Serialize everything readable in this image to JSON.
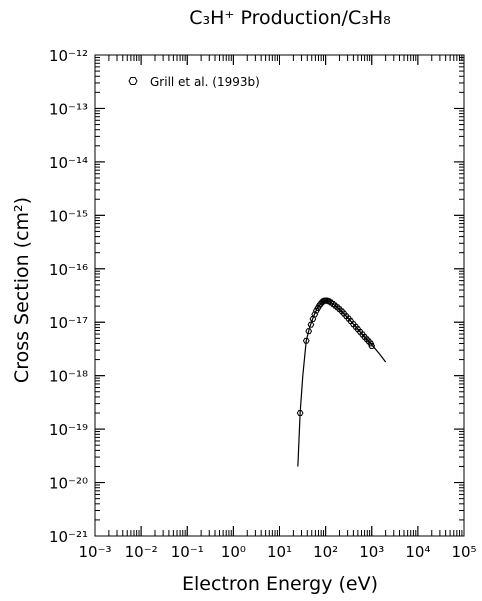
{
  "chart_data": {
    "type": "scatter",
    "title": "C₃H⁺ Production/C₃H₈",
    "xlabel": "Electron Energy (eV)",
    "ylabel": "Cross Section (cm²)",
    "x_scale": "log",
    "y_scale": "log",
    "xlim": [
      0.001,
      100000
    ],
    "ylim": [
      1e-21,
      1e-12
    ],
    "x_tick_labels": [
      "10⁻³",
      "10⁻²",
      "10⁻¹",
      "10⁰",
      "10¹",
      "10²",
      "10³",
      "10⁴",
      "10⁵"
    ],
    "y_tick_labels": [
      "10⁻²¹",
      "10⁻²⁰",
      "10⁻¹⁹",
      "10⁻¹⁸",
      "10⁻¹⁷",
      "10⁻¹⁶",
      "10⁻¹⁵",
      "10⁻¹⁴",
      "10⁻¹³",
      "10⁻¹²"
    ],
    "legend_position": "top-left",
    "grid": false,
    "series": [
      {
        "name": "Grill et al. (1993b)",
        "marker": "open-hexagon",
        "points": [
          [
            28,
            2e-19
          ],
          [
            38,
            4.5e-18
          ],
          [
            43,
            6.8e-18
          ],
          [
            48,
            9e-18
          ],
          [
            53,
            1.15e-17
          ],
          [
            58,
            1.4e-17
          ],
          [
            63,
            1.65e-17
          ],
          [
            68,
            1.85e-17
          ],
          [
            73,
            2.05e-17
          ],
          [
            78,
            2.2e-17
          ],
          [
            83,
            2.35e-17
          ],
          [
            88,
            2.45e-17
          ],
          [
            93,
            2.52e-17
          ],
          [
            98,
            2.55e-17
          ],
          [
            105,
            2.55e-17
          ],
          [
            112,
            2.5e-17
          ],
          [
            120,
            2.45e-17
          ],
          [
            130,
            2.35e-17
          ],
          [
            145,
            2.2e-17
          ],
          [
            160,
            2.05e-17
          ],
          [
            180,
            1.9e-17
          ],
          [
            200,
            1.75e-17
          ],
          [
            225,
            1.6e-17
          ],
          [
            250,
            1.45e-17
          ],
          [
            280,
            1.3e-17
          ],
          [
            315,
            1.17e-17
          ],
          [
            350,
            1.05e-17
          ],
          [
            400,
            9.2e-18
          ],
          [
            450,
            8.2e-18
          ],
          [
            500,
            7.4e-18
          ],
          [
            560,
            6.6e-18
          ],
          [
            630,
            5.9e-18
          ],
          [
            700,
            5.3e-18
          ],
          [
            780,
            4.8e-18
          ],
          [
            860,
            4.4e-18
          ],
          [
            950,
            4e-18
          ],
          [
            1000,
            3.6e-18
          ]
        ]
      },
      {
        "name": "",
        "style": "line",
        "points": [
          [
            25,
            2e-20
          ],
          [
            28,
            2e-19
          ],
          [
            32,
            1e-18
          ],
          [
            38,
            4.5e-18
          ],
          [
            45,
            8e-18
          ],
          [
            55,
            1.3e-17
          ],
          [
            65,
            1.8e-17
          ],
          [
            80,
            2.3e-17
          ],
          [
            100,
            2.55e-17
          ],
          [
            120,
            2.45e-17
          ],
          [
            150,
            2.15e-17
          ],
          [
            200,
            1.75e-17
          ],
          [
            300,
            1.22e-17
          ],
          [
            500,
            7.4e-18
          ],
          [
            700,
            5.3e-18
          ],
          [
            1000,
            3.8e-18
          ],
          [
            1500,
            2.5e-18
          ],
          [
            2000,
            1.8e-18
          ]
        ]
      }
    ]
  }
}
